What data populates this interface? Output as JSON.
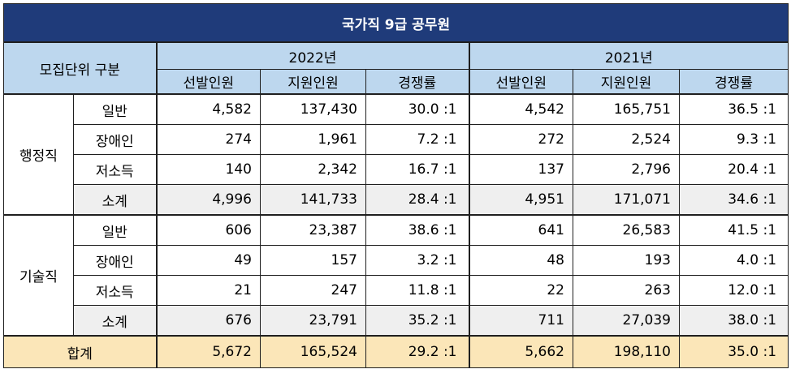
{
  "title": "국가직 9급 공무원",
  "header": {
    "unit_label": "모집단위 구분",
    "years": [
      "2022년",
      "2021년"
    ],
    "cols": [
      "선발인원",
      "지원인원",
      "경쟁률"
    ]
  },
  "groups": [
    {
      "name": "행정직",
      "rows": [
        {
          "label": "일반",
          "y2022": [
            "4,582",
            "137,430",
            "30.0 :1"
          ],
          "y2021": [
            "4,542",
            "165,751",
            "36.5 :1"
          ]
        },
        {
          "label": "장애인",
          "y2022": [
            "274",
            "1,961",
            "7.2 :1"
          ],
          "y2021": [
            "272",
            "2,524",
            "9.3 :1"
          ]
        },
        {
          "label": "저소득",
          "y2022": [
            "140",
            "2,342",
            "16.7 :1"
          ],
          "y2021": [
            "137",
            "2,796",
            "20.4 :1"
          ]
        },
        {
          "label": "소계",
          "y2022": [
            "4,996",
            "141,733",
            "28.4 :1"
          ],
          "y2021": [
            "4,951",
            "171,071",
            "34.6 :1"
          ]
        }
      ]
    },
    {
      "name": "기술직",
      "rows": [
        {
          "label": "일반",
          "y2022": [
            "606",
            "23,387",
            "38.6 :1"
          ],
          "y2021": [
            "641",
            "26,583",
            "41.5 :1"
          ]
        },
        {
          "label": "장애인",
          "y2022": [
            "49",
            "157",
            "3.2 :1"
          ],
          "y2021": [
            "48",
            "193",
            "4.0 :1"
          ]
        },
        {
          "label": "저소득",
          "y2022": [
            "21",
            "247",
            "11.8 :1"
          ],
          "y2021": [
            "22",
            "263",
            "12.0 :1"
          ]
        },
        {
          "label": "소계",
          "y2022": [
            "676",
            "23,791",
            "35.2 :1"
          ],
          "y2021": [
            "711",
            "27,039",
            "38.0 :1"
          ]
        }
      ]
    }
  ],
  "total": {
    "label": "합계",
    "y2022": [
      "5,672",
      "165,524",
      "29.2 :1"
    ],
    "y2021": [
      "5,662",
      "198,110",
      "35.0 :1"
    ]
  },
  "colors": {
    "title_bg": "#1f3b7a",
    "header_bg": "#bdd7ee",
    "subtotal_bg": "#efefef",
    "total_bg": "#fbe6b8",
    "ratio_text": "#1a6fb6"
  }
}
